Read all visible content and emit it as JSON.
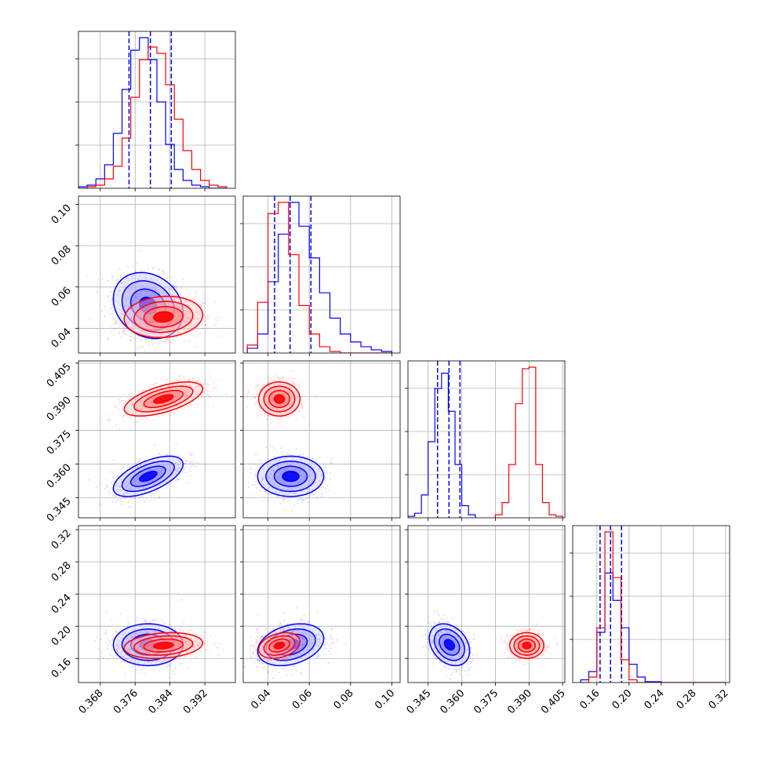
{
  "chart_data": {
    "type": "corner",
    "grid": true,
    "series": [
      {
        "name": "",
        "color": "#0000ff",
        "means": [
          0.379,
          0.051,
          0.3545,
          0.177
        ],
        "sds": [
          0.004,
          0.008,
          0.0045,
          0.013
        ],
        "correlations": [
          [
            0,
            1,
            -0.2
          ],
          [
            0,
            2,
            0.6
          ],
          [
            0,
            3,
            0.0
          ],
          [
            1,
            2,
            0.0
          ],
          [
            1,
            3,
            0.3
          ],
          [
            2,
            3,
            -0.3
          ]
        ],
        "quantile_lines": [
          [
            0.3746,
            0.3795,
            0.3843
          ],
          [
            0.0432,
            0.0507,
            0.0608
          ],
          [
            0.3492,
            0.3543,
            0.3592
          ],
          [
            0.164,
            0.177,
            0.1907
          ]
        ],
        "histograms": [
          {
            "edges": [
              0.363,
              0.365,
              0.367,
              0.369,
              0.371,
              0.373,
              0.375,
              0.377,
              0.379,
              0.381,
              0.383,
              0.385,
              0.387,
              0.389,
              0.391,
              0.393,
              0.395,
              0.397
            ],
            "counts": [
              1,
              2,
              6,
              15,
              35,
              63,
              88,
              96,
              82,
              55,
              28,
              12,
              5,
              2,
              1,
              0,
              0
            ]
          },
          {
            "edges": [
              0.03,
              0.035,
              0.04,
              0.045,
              0.05,
              0.055,
              0.06,
              0.065,
              0.07,
              0.075,
              0.08,
              0.085,
              0.09,
              0.095,
              0.1
            ],
            "counts": [
              3,
              12,
              45,
              75,
              95,
              80,
              60,
              38,
              22,
              12,
              7,
              4,
              2,
              1
            ]
          },
          {
            "edges": [
              0.336,
              0.339,
              0.342,
              0.345,
              0.348,
              0.351,
              0.354,
              0.357,
              0.36,
              0.363,
              0.366
            ],
            "counts": [
              1,
              3,
              15,
              50,
              85,
              95,
              70,
              35,
              8,
              2
            ]
          },
          {
            "edges": [
              0.14,
              0.15,
              0.16,
              0.17,
              0.18,
              0.19,
              0.2,
              0.21,
              0.22,
              0.24,
              0.26,
              0.28,
              0.3,
              0.32
            ],
            "counts": [
              3,
              12,
              55,
              120,
              90,
              60,
              20,
              6,
              1,
              0,
              0,
              0,
              0
            ]
          }
        ]
      },
      {
        "name": "",
        "color": "#ff0000",
        "means": [
          0.3825,
          0.0455,
          0.389,
          0.176
        ],
        "sds": [
          0.0045,
          0.005,
          0.0038,
          0.008
        ],
        "correlations": [
          [
            0,
            1,
            0.1
          ],
          [
            0,
            2,
            0.6
          ],
          [
            0,
            3,
            0.2
          ],
          [
            1,
            2,
            0.0
          ],
          [
            1,
            3,
            0.3
          ],
          [
            2,
            3,
            0.0
          ]
        ],
        "quantile_lines": null,
        "histograms": [
          {
            "edges": [
              0.363,
              0.365,
              0.367,
              0.369,
              0.371,
              0.373,
              0.375,
              0.377,
              0.379,
              0.381,
              0.383,
              0.385,
              0.387,
              0.389,
              0.391,
              0.393,
              0.395,
              0.397
            ],
            "counts": [
              0,
              1,
              2,
              6,
              14,
              32,
              58,
              82,
              90,
              86,
              66,
              44,
              24,
              12,
              5,
              2,
              1
            ]
          },
          {
            "edges": [
              0.03,
              0.035,
              0.04,
              0.045,
              0.05,
              0.055,
              0.06,
              0.065,
              0.07,
              0.075,
              0.08,
              0.085,
              0.09,
              0.095,
              0.1
            ],
            "counts": [
              5,
              32,
              88,
              95,
              62,
              30,
              12,
              4,
              1,
              0,
              0,
              0,
              0,
              0
            ]
          },
          {
            "edges": [
              0.375,
              0.378,
              0.381,
              0.384,
              0.387,
              0.39,
              0.393,
              0.396,
              0.399,
              0.402,
              0.405
            ],
            "counts": [
              2,
              10,
              35,
              75,
              98,
              99,
              35,
              10,
              2,
              1
            ]
          },
          {
            "edges": [
              0.14,
              0.15,
              0.16,
              0.17,
              0.18,
              0.19,
              0.2,
              0.21,
              0.22,
              0.24,
              0.26,
              0.28,
              0.3,
              0.32
            ],
            "counts": [
              0,
              6,
              60,
              165,
              115,
              25,
              3,
              0,
              0,
              0,
              0,
              0,
              0
            ]
          }
        ]
      }
    ],
    "parameters": [
      {
        "range": [
          0.363,
          0.399
        ],
        "ticks": [
          0.368,
          0.376,
          0.384,
          0.392
        ],
        "tick_labels": [
          "0.368",
          "0.376",
          "0.384",
          "0.392"
        ]
      },
      {
        "range": [
          0.028,
          0.104
        ],
        "ticks": [
          0.04,
          0.06,
          0.08,
          0.1
        ],
        "tick_labels": [
          "0.04",
          "0.06",
          "0.08",
          "0.10"
        ]
      },
      {
        "range": [
          0.336,
          0.406
        ],
        "ticks": [
          0.345,
          0.36,
          0.375,
          0.39,
          0.405
        ],
        "tick_labels": [
          "0.345",
          "0.360",
          "0.375",
          "0.390",
          "0.405"
        ]
      },
      {
        "range": [
          0.13,
          0.325
        ],
        "ticks": [
          0.16,
          0.2,
          0.24,
          0.28,
          0.32
        ],
        "tick_labels": [
          "0.16",
          "0.20",
          "0.24",
          "0.28",
          "0.32"
        ]
      }
    ]
  }
}
